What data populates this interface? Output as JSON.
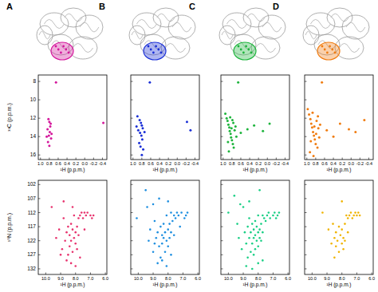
{
  "chart_data": [
    {
      "type": "scatter",
      "title": "A",
      "x_label": "¹H (p.p.m.)",
      "y_label": "¹³C (p.p.m.)",
      "color": "#d4179c",
      "marker": "circle",
      "tick_labels": true,
      "xlim": [
        1.05,
        -0.5
      ],
      "ylim": [
        16.5,
        7.3
      ],
      "xticks": [
        {
          "value": 1,
          "label": "1.0"
        },
        0.8,
        0.6,
        0.4,
        0.2,
        {
          "value": 0,
          "label": "0.0"
        },
        -0.2,
        -0.4
      ],
      "yticks": [
        8,
        10,
        12,
        14,
        16
      ],
      "x": [
        0.65,
        0.82,
        0.8,
        0.78,
        0.84,
        0.79,
        0.81,
        0.76,
        0.83,
        0.8,
        0.86,
        0.77,
        -0.42,
        0.75
      ],
      "values": [
        8.1,
        12.1,
        12.4,
        12.9,
        13.2,
        13.5,
        13.9,
        14.2,
        14.6,
        15.0,
        14.0,
        12.6,
        12.5,
        13.7
      ]
    },
    {
      "type": "scatter",
      "title": "B",
      "x_label": "¹H (p.p.m.)",
      "color": "#1a2fd6",
      "marker": "circle",
      "tick_labels": "x",
      "xlim": [
        1.05,
        -0.5
      ],
      "ylim": [
        16.5,
        7.3
      ],
      "xticks": [
        {
          "value": 1,
          "label": "1.0"
        },
        0.8,
        0.6,
        0.4,
        0.2,
        {
          "value": 0,
          "label": "0.0"
        },
        -0.2,
        -0.4
      ],
      "yticks": [
        8,
        10,
        12,
        14,
        16
      ],
      "x": [
        0.62,
        0.9,
        0.85,
        0.82,
        0.8,
        0.78,
        0.88,
        0.84,
        0.81,
        0.79,
        0.86,
        0.83,
        0.77,
        0.92,
        0.74,
        -0.22,
        -0.3,
        0.8
      ],
      "values": [
        8.1,
        11.8,
        12.2,
        12.5,
        12.8,
        13.1,
        13.3,
        13.6,
        13.9,
        14.3,
        14.7,
        15.1,
        15.4,
        12.9,
        13.5,
        12.4,
        13.3,
        16.0
      ]
    },
    {
      "type": "scatter",
      "title": "C",
      "x_label": "¹H (p.p.m.)",
      "color": "#1db43c",
      "marker": "circle",
      "tick_labels": "x",
      "xlim": [
        1.05,
        -0.5
      ],
      "ylim": [
        16.5,
        7.3
      ],
      "xticks": [
        {
          "value": 1,
          "label": "1.0"
        },
        0.8,
        0.6,
        0.4,
        0.2,
        {
          "value": 0,
          "label": "0.0"
        },
        -0.2,
        -0.4
      ],
      "yticks": [
        8,
        10,
        12,
        14,
        16
      ],
      "x": [
        0.66,
        0.95,
        0.92,
        0.9,
        0.88,
        0.86,
        0.85,
        0.83,
        0.82,
        0.8,
        0.79,
        0.78,
        0.76,
        0.74,
        0.72,
        0.7,
        0.87,
        0.84,
        0.81,
        0.77,
        0.6,
        0.45,
        0.3,
        0.1,
        -0.05,
        0.89
      ],
      "values": [
        8.1,
        11.5,
        12.0,
        12.3,
        12.7,
        13.0,
        13.4,
        13.7,
        14.1,
        14.4,
        12.2,
        14.8,
        15.2,
        13.3,
        12.9,
        14.0,
        15.6,
        11.9,
        13.1,
        12.5,
        13.6,
        13.2,
        12.8,
        13.4,
        12.6,
        14.6
      ]
    },
    {
      "type": "scatter",
      "title": "D",
      "x_label": "¹H (p.p.m.)",
      "color": "#f07c10",
      "marker": "circle",
      "tick_labels": "x",
      "xlim": [
        1.05,
        -0.5
      ],
      "ylim": [
        16.5,
        7.3
      ],
      "xticks": [
        {
          "value": 1,
          "label": "1.0"
        },
        0.8,
        0.6,
        0.4,
        0.2,
        {
          "value": 0,
          "label": "0.0"
        },
        -0.2,
        -0.4
      ],
      "yticks": [
        8,
        10,
        12,
        14,
        16
      ],
      "x": [
        0.66,
        0.98,
        0.95,
        0.92,
        0.9,
        0.88,
        0.86,
        0.84,
        0.82,
        0.8,
        0.78,
        0.76,
        0.74,
        0.72,
        0.7,
        0.93,
        0.87,
        0.83,
        0.79,
        0.75,
        0.55,
        0.4,
        0.25,
        0.05,
        -0.1,
        -0.3,
        0.91,
        0.85
      ],
      "values": [
        8.1,
        11.0,
        11.6,
        12.1,
        12.6,
        13.0,
        13.5,
        13.9,
        14.3,
        14.8,
        12.3,
        15.2,
        13.1,
        14.1,
        12.7,
        15.7,
        11.4,
        12.9,
        13.7,
        11.8,
        13.3,
        14.0,
        12.6,
        13.2,
        13.5,
        12.2,
        14.5,
        16.1
      ]
    },
    {
      "type": "scatter",
      "x_label": "¹H (p.p.m.)",
      "y_label": "¹⁵N (p.p.m.)",
      "color": "#e8336e",
      "marker": "circle",
      "tick_labels": true,
      "xlim": [
        10.5,
        5.9
      ],
      "ylim": [
        134,
        100.5
      ],
      "xticks": [
        {
          "value": 10,
          "label": "10.0"
        },
        {
          "value": 9,
          "label": "9.0"
        },
        {
          "value": 8,
          "label": "8.0"
        },
        {
          "value": 7,
          "label": "7.0"
        },
        {
          "value": 6,
          "label": "6.0"
        }
      ],
      "yticks": [
        102,
        107,
        112,
        117,
        122,
        127,
        132
      ],
      "x": [
        9.6,
        9.3,
        9.1,
        8.9,
        8.8,
        8.7,
        8.6,
        8.5,
        8.5,
        8.4,
        8.4,
        8.3,
        8.3,
        8.2,
        8.2,
        8.1,
        8.1,
        8.0,
        8.0,
        7.9,
        7.9,
        7.8,
        7.8,
        7.7,
        7.6,
        7.5,
        7.4,
        7.3,
        7.2,
        7.0,
        6.9,
        6.8,
        8.6,
        8.3,
        8.0,
        7.7,
        9.0,
        8.8,
        7.4,
        8.2
      ],
      "values": [
        110,
        121,
        118,
        125,
        114,
        122,
        119,
        117,
        127,
        120,
        124,
        116,
        122,
        118,
        126,
        113,
        121,
        119,
        123,
        117,
        125,
        114,
        120,
        113,
        112,
        114,
        112,
        113,
        112,
        113,
        114,
        113,
        129,
        130,
        131,
        128,
        127,
        108,
        118,
        110
      ]
    },
    {
      "type": "scatter",
      "x_label": "¹H (p.p.m.)",
      "color": "#1e8fe0",
      "marker": "circle",
      "tick_labels": "x",
      "xlim": [
        10.5,
        5.9
      ],
      "ylim": [
        134,
        100.5
      ],
      "xticks": [
        {
          "value": 10,
          "label": "10.0"
        },
        {
          "value": 9,
          "label": "9.0"
        },
        {
          "value": 8,
          "label": "8.0"
        },
        {
          "value": 7,
          "label": "7.0"
        },
        {
          "value": 6,
          "label": "6.0"
        }
      ],
      "yticks": [
        102,
        107,
        112,
        117,
        122,
        127,
        132
      ],
      "x": [
        10.1,
        9.5,
        9.3,
        9.2,
        9.0,
        8.9,
        8.8,
        8.7,
        8.6,
        8.5,
        8.5,
        8.4,
        8.4,
        8.3,
        8.3,
        8.2,
        8.2,
        8.1,
        8.1,
        8.0,
        8.0,
        7.9,
        7.9,
        7.8,
        7.8,
        7.7,
        7.6,
        7.5,
        7.4,
        7.3,
        7.1,
        6.9,
        6.8,
        6.7,
        8.7,
        8.4,
        8.1,
        7.8,
        9.4,
        9.0,
        8.6,
        7.6,
        8.9,
        8.0,
        7.2
      ],
      "values": [
        114,
        104,
        122,
        118,
        126,
        115,
        121,
        119,
        124,
        117,
        128,
        120,
        123,
        116,
        121,
        119,
        126,
        113,
        122,
        118,
        124,
        116,
        121,
        112,
        119,
        115,
        113,
        114,
        112,
        113,
        112,
        114,
        113,
        112,
        130,
        129,
        131,
        127,
        110,
        109,
        107,
        120,
        123,
        108,
        117
      ]
    },
    {
      "type": "scatter",
      "x_label": "¹H (p.p.m.)",
      "color": "#19cf85",
      "marker": "circle",
      "tick_labels": "x",
      "xlim": [
        10.5,
        5.9
      ],
      "ylim": [
        134,
        100.5
      ],
      "xticks": [
        {
          "value": 10,
          "label": "10.0"
        },
        {
          "value": 9,
          "label": "9.0"
        },
        {
          "value": 8,
          "label": "8.0"
        },
        {
          "value": 7,
          "label": "7.0"
        },
        {
          "value": 6,
          "label": "6.0"
        }
      ],
      "yticks": [
        102,
        107,
        112,
        117,
        122,
        127,
        132
      ],
      "x": [
        10.0,
        9.6,
        9.4,
        9.3,
        9.1,
        9.0,
        8.9,
        8.8,
        8.7,
        8.7,
        8.6,
        8.6,
        8.5,
        8.5,
        8.4,
        8.4,
        8.3,
        8.3,
        8.2,
        8.2,
        8.2,
        8.1,
        8.1,
        8.0,
        8.0,
        8.0,
        7.9,
        7.9,
        7.8,
        7.8,
        7.7,
        7.7,
        7.6,
        7.5,
        7.4,
        7.3,
        7.2,
        7.0,
        6.9,
        6.8,
        6.7,
        6.6,
        8.8,
        8.4,
        8.0,
        7.7,
        9.2,
        8.6,
        8.3,
        7.9
      ],
      "values": [
        112,
        106,
        116,
        121,
        125,
        110,
        119,
        123,
        117,
        128,
        114,
        121,
        119,
        126,
        116,
        123,
        118,
        121,
        115,
        120,
        125,
        117,
        122,
        119,
        124,
        113,
        118,
        121,
        116,
        122,
        119,
        113,
        114,
        115,
        113,
        112,
        114,
        113,
        112,
        114,
        113,
        112,
        131,
        132,
        130,
        129,
        109,
        108,
        127,
        104
      ]
    },
    {
      "type": "scatter",
      "x_label": "¹H (p.p.m.)",
      "color": "#f0b400",
      "marker": "circle",
      "tick_labels": "x",
      "xlim": [
        10.5,
        5.9
      ],
      "ylim": [
        134,
        100.5
      ],
      "xticks": [
        {
          "value": 10,
          "label": "10.0"
        },
        {
          "value": 9,
          "label": "9.0"
        },
        {
          "value": 8,
          "label": "8.0"
        },
        {
          "value": 7,
          "label": "7.0"
        },
        {
          "value": 6,
          "label": "6.0"
        }
      ],
      "yticks": [
        102,
        107,
        112,
        117,
        122,
        127,
        132
      ],
      "x": [
        9.3,
        8.9,
        8.7,
        8.6,
        8.5,
        8.4,
        8.4,
        8.3,
        8.2,
        8.2,
        8.1,
        8.0,
        8.0,
        7.9,
        7.9,
        7.8,
        7.8,
        7.7,
        7.6,
        7.5,
        7.4,
        7.3,
        7.2,
        7.1,
        7.0,
        6.9,
        6.8,
        8.5,
        8.0,
        7.6
      ],
      "values": [
        112,
        118,
        123,
        116,
        121,
        119,
        124,
        122,
        117,
        126,
        120,
        118,
        123,
        121,
        125,
        116,
        122,
        113,
        114,
        113,
        112,
        114,
        113,
        112,
        113,
        112,
        113,
        128,
        108,
        119
      ]
    }
  ]
}
